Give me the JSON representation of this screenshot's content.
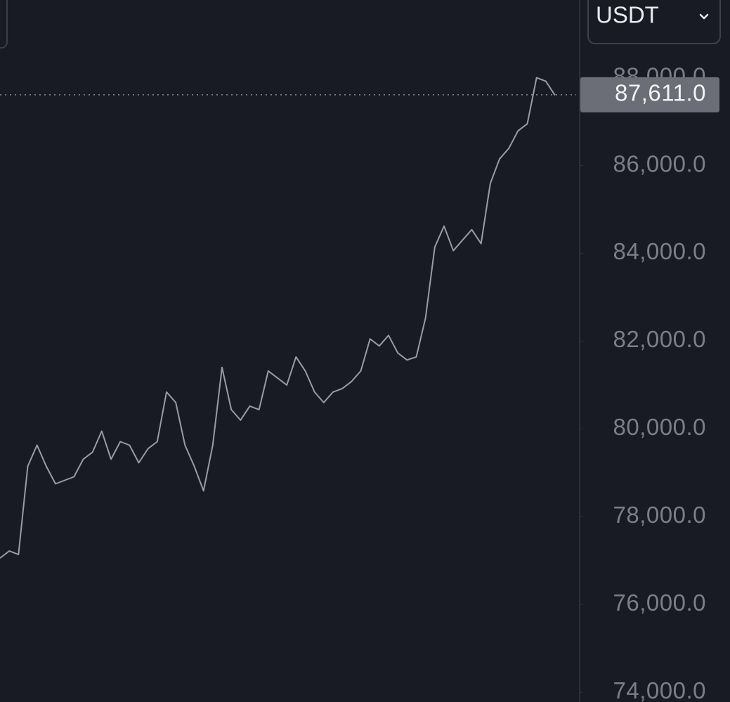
{
  "quote_currency": "USDT",
  "chart_data": {
    "type": "line",
    "color": "#9a9ca3",
    "values": [
      77058,
      77220,
      77140,
      79150,
      79630,
      79150,
      78750,
      78830,
      78910,
      79310,
      79470,
      79950,
      79310,
      79710,
      79630,
      79230,
      79550,
      79710,
      80840,
      80600,
      79630,
      79150,
      78590,
      79630,
      81400,
      80440,
      80200,
      80520,
      80440,
      81320,
      81160,
      81000,
      81640,
      81320,
      80840,
      80600,
      80840,
      80920,
      81080,
      81320,
      82050,
      81890,
      82130,
      81730,
      81570,
      81640,
      82530,
      84140,
      84620,
      84060,
      84300,
      84540,
      84220,
      85590,
      86150,
      86390,
      86790,
      86950,
      88000,
      87920,
      87600
    ],
    "ylim": [
      73780,
      89770
    ],
    "yticks": [
      {
        "value": 74000,
        "label": "74,000.0"
      },
      {
        "value": 76000,
        "label": "76,000.0"
      },
      {
        "value": 78000,
        "label": "78,000.0"
      },
      {
        "value": 80000,
        "label": "80,000.0"
      },
      {
        "value": 82000,
        "label": "82,000.0"
      },
      {
        "value": 84000,
        "label": "84,000.0"
      },
      {
        "value": 86000,
        "label": "86,000.0"
      },
      {
        "value": 88000,
        "label": "88,000.0"
      }
    ],
    "last_price": {
      "value": 87611,
      "label": "87,611.0"
    }
  }
}
